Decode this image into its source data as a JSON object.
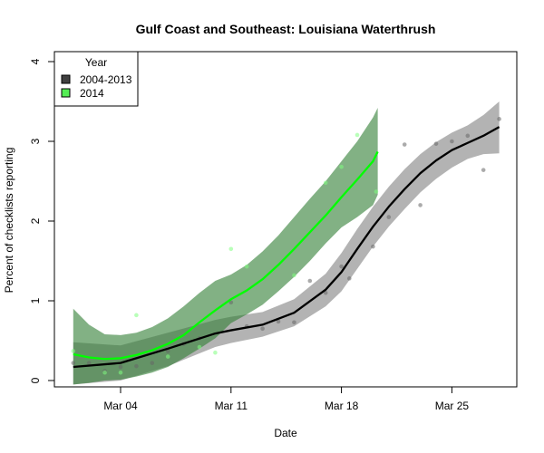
{
  "chart_data": {
    "type": "line",
    "title": "Gulf Coast and Southeast: Louisiana Waterthrush",
    "xlabel": "Date",
    "ylabel": "Percent of checklists reporting",
    "xlim": [
      -0.2,
      29.5
    ],
    "ylim": [
      -0.07,
      4.1
    ],
    "x_ticks": [
      {
        "day": 4,
        "label": "Mar 04"
      },
      {
        "day": 11,
        "label": "Mar 11"
      },
      {
        "day": 18,
        "label": "Mar 18"
      },
      {
        "day": 25,
        "label": "Mar 25"
      }
    ],
    "y_ticks": [
      0,
      1,
      2,
      3,
      4
    ],
    "legend": {
      "title": "Year",
      "placement": "top-left",
      "entries": [
        {
          "label": "2004-2013",
          "color": "#404040"
        },
        {
          "label": "2014",
          "color": "#55ee55"
        }
      ]
    },
    "series": [
      {
        "name": "2004-2013",
        "line_color": "#000000",
        "band_color": "#999999",
        "x": [
          1,
          4,
          7,
          10,
          11,
          13,
          15,
          17,
          18,
          19,
          20,
          21,
          22,
          23,
          24,
          25,
          26,
          27,
          28
        ],
        "y": [
          0.17,
          0.22,
          0.4,
          0.59,
          0.63,
          0.7,
          0.85,
          1.14,
          1.36,
          1.65,
          1.93,
          2.18,
          2.4,
          2.6,
          2.76,
          2.89,
          2.98,
          3.07,
          3.18
        ],
        "lower": [
          -0.05,
          0.0,
          0.18,
          0.42,
          0.47,
          0.55,
          0.68,
          0.93,
          1.12,
          1.4,
          1.68,
          1.93,
          2.15,
          2.36,
          2.53,
          2.67,
          2.78,
          2.84,
          2.85
        ],
        "upper": [
          0.48,
          0.44,
          0.6,
          0.76,
          0.8,
          0.86,
          1.02,
          1.34,
          1.6,
          1.9,
          2.18,
          2.43,
          2.65,
          2.84,
          2.99,
          3.11,
          3.2,
          3.33,
          3.5
        ],
        "points": [
          [
            1,
            0.22
          ],
          [
            2,
            0.22
          ],
          [
            3,
            0.12
          ],
          [
            4,
            0.17
          ],
          [
            5,
            0.18
          ],
          [
            6,
            0.22
          ],
          [
            7,
            0.37
          ],
          [
            8,
            0.46
          ],
          [
            9,
            0.53
          ],
          [
            11,
            0.98
          ],
          [
            12,
            0.68
          ],
          [
            13,
            0.65
          ],
          [
            14,
            0.74
          ],
          [
            15,
            0.73
          ],
          [
            16,
            1.25
          ],
          [
            17,
            1.1
          ],
          [
            18,
            1.43
          ],
          [
            18.5,
            1.28
          ],
          [
            20,
            1.68
          ],
          [
            21,
            2.05
          ],
          [
            22,
            2.96
          ],
          [
            23,
            2.2
          ],
          [
            24,
            2.97
          ],
          [
            25,
            3.0
          ],
          [
            26,
            3.07
          ],
          [
            27,
            2.64
          ],
          [
            28,
            3.28
          ]
        ]
      },
      {
        "name": "2014",
        "line_color": "#00ff00",
        "band_color": "#2e7d32",
        "x": [
          1,
          2,
          3,
          4,
          5,
          6,
          7,
          8,
          9,
          10,
          11,
          12,
          13,
          14,
          15,
          16,
          17,
          18,
          19,
          20,
          20.3
        ],
        "y": [
          0.33,
          0.29,
          0.27,
          0.28,
          0.32,
          0.38,
          0.46,
          0.57,
          0.73,
          0.88,
          1.02,
          1.13,
          1.27,
          1.45,
          1.65,
          1.86,
          2.07,
          2.3,
          2.52,
          2.75,
          2.87
        ],
        "lower": [
          -0.05,
          -0.03,
          0.0,
          0.01,
          0.05,
          0.1,
          0.17,
          0.28,
          0.4,
          0.53,
          0.72,
          0.83,
          0.95,
          1.12,
          1.3,
          1.5,
          1.72,
          1.92,
          2.05,
          2.2,
          2.33
        ],
        "upper": [
          0.9,
          0.7,
          0.58,
          0.57,
          0.6,
          0.67,
          0.78,
          0.93,
          1.1,
          1.25,
          1.33,
          1.45,
          1.62,
          1.82,
          2.05,
          2.28,
          2.5,
          2.75,
          3.0,
          3.3,
          3.42
        ],
        "points": [
          [
            1,
            0.37
          ],
          [
            3,
            0.1
          ],
          [
            4,
            0.1
          ],
          [
            5,
            0.82
          ],
          [
            7,
            0.3
          ],
          [
            9,
            0.42
          ],
          [
            10,
            0.35
          ],
          [
            11,
            1.65
          ],
          [
            12,
            1.43
          ],
          [
            15,
            1.32
          ],
          [
            17,
            2.48
          ],
          [
            18,
            2.68
          ],
          [
            19,
            3.08
          ],
          [
            20.2,
            2.37
          ]
        ]
      }
    ]
  }
}
